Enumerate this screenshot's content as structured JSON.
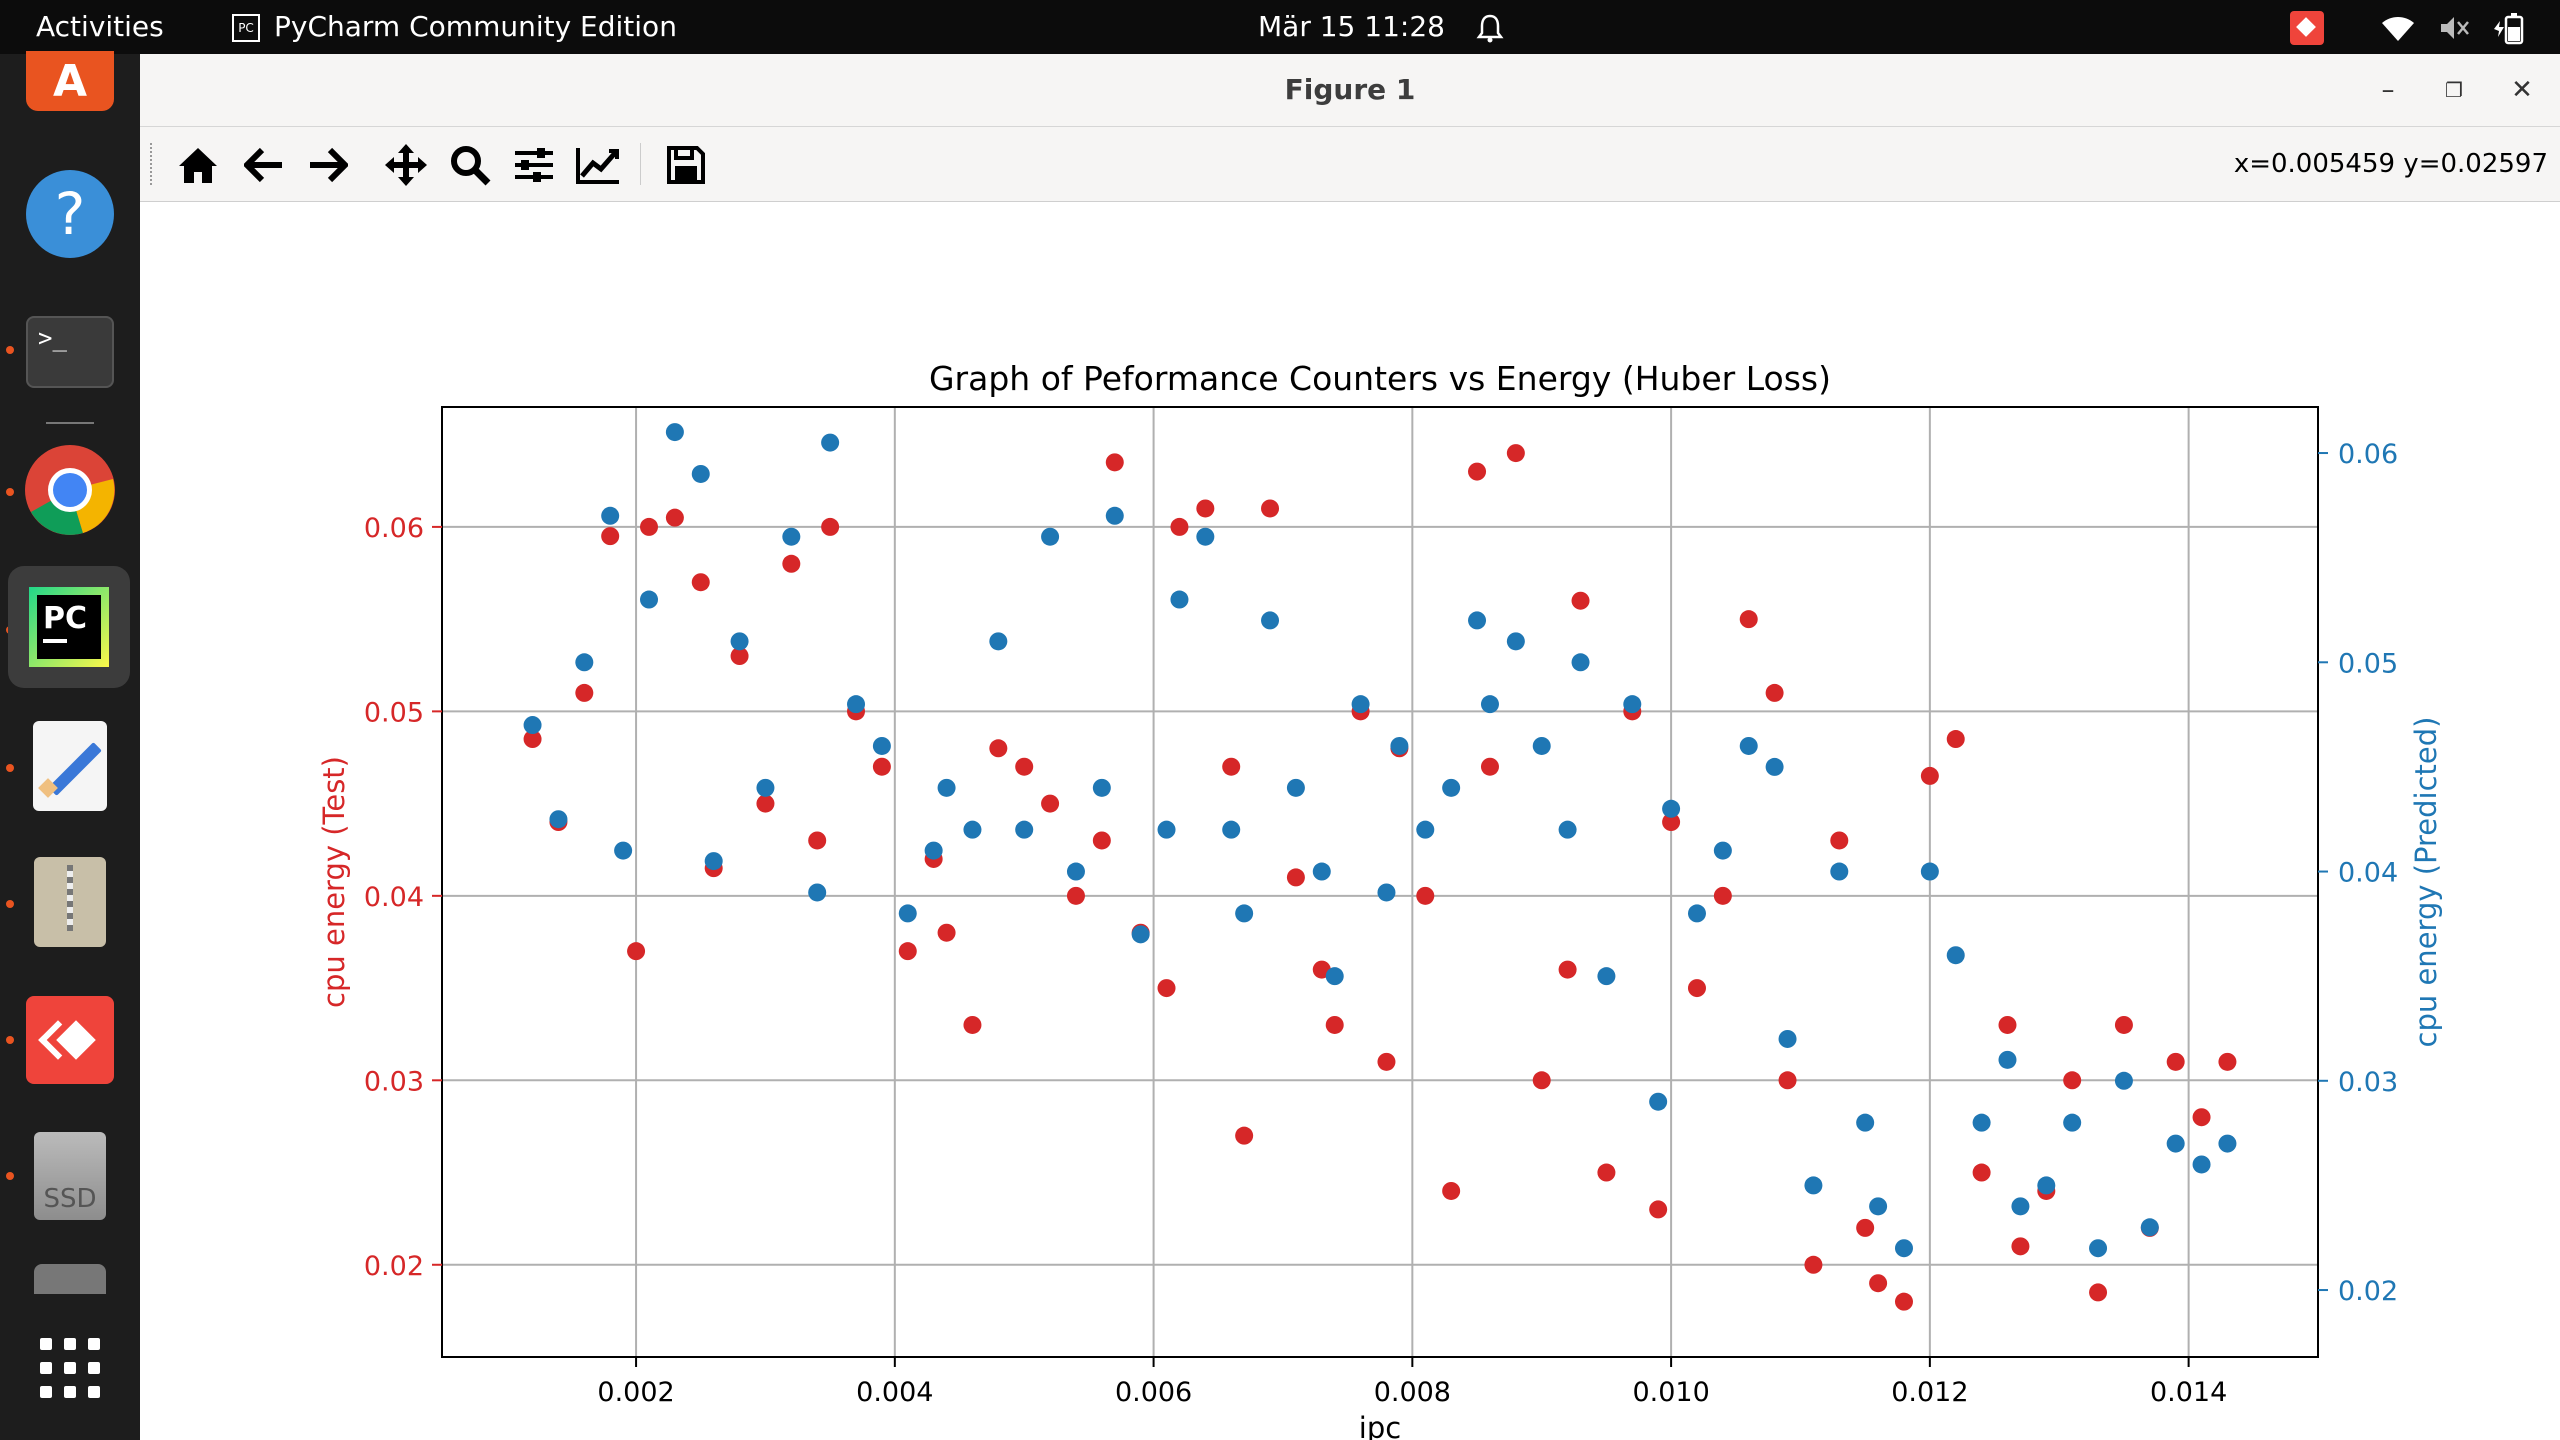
{
  "topbar": {
    "activities": "Activities",
    "app_name": "PyCharm Community Edition",
    "datetime": "Mär 15  11:28"
  },
  "dock": {
    "items": [
      {
        "name": "software-center",
        "color": "#e95420"
      },
      {
        "name": "help",
        "color": "#3a8fd8"
      },
      {
        "name": "terminal",
        "color": "#3a3a3a"
      },
      {
        "name": "chrome",
        "color": "#4285f4"
      },
      {
        "name": "pycharm",
        "color": "#21d789"
      },
      {
        "name": "text-editor",
        "color": "#f5f5f5"
      },
      {
        "name": "archive-manager",
        "color": "#c8bfa8"
      },
      {
        "name": "anydesk",
        "color": "#ef443b"
      },
      {
        "name": "ssd-drive",
        "color": "#9a9a9a",
        "label": "SSD"
      }
    ]
  },
  "window": {
    "title": "Figure 1",
    "coords": "x=0.005459 y=0.02597"
  },
  "chart_data": {
    "type": "scatter",
    "title": "Graph of Peformance Counters vs  Energy (Huber Loss)",
    "xlabel": "ipc",
    "ylabel_left": "cpu energy (Test)",
    "ylabel_right": "cpu energy (Predicted)",
    "xlim": [
      0.0005,
      0.015
    ],
    "ylim_left": [
      0.015,
      0.0665
    ],
    "ylim_right": [
      0.0168,
      0.0622
    ],
    "xticks": [
      "0.002",
      "0.004",
      "0.006",
      "0.008",
      "0.010",
      "0.012",
      "0.014"
    ],
    "yticks_left": [
      "0.02",
      "0.03",
      "0.04",
      "0.05",
      "0.06"
    ],
    "yticks_right": [
      "0.02",
      "0.03",
      "0.04",
      "0.05",
      "0.06"
    ],
    "grid": true,
    "colors": {
      "test": "#d62728",
      "predicted": "#1f77b4"
    },
    "series": [
      {
        "axis": "left",
        "color": "#d62728",
        "x": [
          0.0012,
          0.0014,
          0.0016,
          0.0018,
          0.002,
          0.0021,
          0.0023,
          0.0025,
          0.0026,
          0.0028,
          0.003,
          0.0032,
          0.0034,
          0.0035,
          0.0037,
          0.0039,
          0.0041,
          0.0043,
          0.0044,
          0.0046,
          0.0048,
          0.005,
          0.0052,
          0.0054,
          0.0056,
          0.0057,
          0.0059,
          0.0061,
          0.0062,
          0.0064,
          0.0066,
          0.0067,
          0.0069,
          0.0071,
          0.0073,
          0.0074,
          0.0076,
          0.0078,
          0.0079,
          0.0081,
          0.0083,
          0.0085,
          0.0086,
          0.0088,
          0.009,
          0.0092,
          0.0093,
          0.0095,
          0.0097,
          0.0099,
          0.01,
          0.0102,
          0.0104,
          0.0106,
          0.0108,
          0.0109,
          0.0111,
          0.0113,
          0.0115,
          0.0116,
          0.0118,
          0.012,
          0.0122,
          0.0124,
          0.0126,
          0.0127,
          0.0129,
          0.0131,
          0.0133,
          0.0135,
          0.0137,
          0.0139,
          0.0141,
          0.0143
        ],
        "y": [
          0.0485,
          0.044,
          0.051,
          0.0595,
          0.037,
          0.06,
          0.0605,
          0.057,
          0.0415,
          0.053,
          0.045,
          0.058,
          0.043,
          0.06,
          0.05,
          0.047,
          0.037,
          0.042,
          0.038,
          0.033,
          0.048,
          0.047,
          0.045,
          0.04,
          0.043,
          0.0635,
          0.038,
          0.035,
          0.06,
          0.061,
          0.047,
          0.027,
          0.061,
          0.041,
          0.036,
          0.033,
          0.05,
          0.031,
          0.048,
          0.04,
          0.024,
          0.063,
          0.047,
          0.064,
          0.03,
          0.036,
          0.056,
          0.025,
          0.05,
          0.023,
          0.044,
          0.035,
          0.04,
          0.055,
          0.051,
          0.03,
          0.02,
          0.043,
          0.022,
          0.019,
          0.018,
          0.0465,
          0.0485,
          0.025,
          0.033,
          0.021,
          0.024,
          0.03,
          0.0185,
          0.033,
          0.022,
          0.031,
          0.028,
          0.031
        ]
      },
      {
        "axis": "right",
        "color": "#1f77b4",
        "x": [
          0.0012,
          0.0014,
          0.0016,
          0.0018,
          0.0019,
          0.0021,
          0.0023,
          0.0025,
          0.0026,
          0.0028,
          0.003,
          0.0032,
          0.0034,
          0.0035,
          0.0037,
          0.0039,
          0.0041,
          0.0043,
          0.0044,
          0.0046,
          0.0048,
          0.005,
          0.0052,
          0.0054,
          0.0056,
          0.0057,
          0.0059,
          0.0061,
          0.0062,
          0.0064,
          0.0066,
          0.0067,
          0.0069,
          0.0071,
          0.0073,
          0.0074,
          0.0076,
          0.0078,
          0.0079,
          0.0081,
          0.0083,
          0.0085,
          0.0086,
          0.0088,
          0.009,
          0.0092,
          0.0093,
          0.0095,
          0.0097,
          0.0099,
          0.01,
          0.0102,
          0.0104,
          0.0106,
          0.0108,
          0.0109,
          0.0111,
          0.0113,
          0.0115,
          0.0116,
          0.0118,
          0.012,
          0.0122,
          0.0124,
          0.0126,
          0.0127,
          0.0129,
          0.0131,
          0.0133,
          0.0135,
          0.0137,
          0.0139,
          0.0141,
          0.0143
        ],
        "y": [
          0.047,
          0.0425,
          0.05,
          0.057,
          0.041,
          0.053,
          0.061,
          0.059,
          0.0405,
          0.051,
          0.044,
          0.056,
          0.039,
          0.0605,
          0.048,
          0.046,
          0.038,
          0.041,
          0.044,
          0.042,
          0.051,
          0.042,
          0.056,
          0.04,
          0.044,
          0.057,
          0.037,
          0.042,
          0.053,
          0.056,
          0.042,
          0.038,
          0.052,
          0.044,
          0.04,
          0.035,
          0.048,
          0.039,
          0.046,
          0.042,
          0.044,
          0.052,
          0.048,
          0.051,
          0.046,
          0.042,
          0.05,
          0.035,
          0.048,
          0.029,
          0.043,
          0.038,
          0.041,
          0.046,
          0.045,
          0.032,
          0.025,
          0.04,
          0.028,
          0.024,
          0.022,
          0.04,
          0.036,
          0.028,
          0.031,
          0.024,
          0.025,
          0.028,
          0.022,
          0.03,
          0.023,
          0.027,
          0.026,
          0.027
        ]
      }
    ]
  }
}
